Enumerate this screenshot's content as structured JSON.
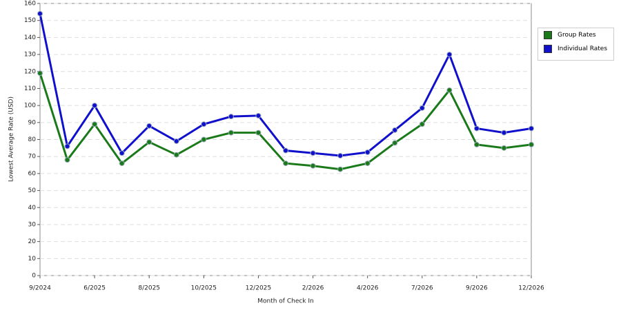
{
  "chart_data": {
    "type": "line",
    "x_label": "Month of Check In",
    "y_label": "Lowest Average Rate (USD)",
    "categories": [
      "9/2024",
      null,
      "6/2025",
      null,
      "8/2025",
      null,
      "10/2025",
      null,
      "12/2025",
      null,
      "2/2026",
      null,
      "4/2026",
      null,
      "7/2026",
      null,
      "9/2026",
      null,
      "12/2026"
    ],
    "series": [
      {
        "name": "Group Rates",
        "color": "#1a7a1a",
        "values": [
          119,
          68,
          89,
          66,
          78.5,
          71,
          80,
          84,
          84,
          66,
          64.5,
          62.5,
          66,
          78,
          89,
          109,
          77,
          75,
          77
        ]
      },
      {
        "name": "Individual Rates",
        "color": "#1010cc",
        "values": [
          154,
          76,
          100,
          72,
          88,
          79,
          89,
          93.5,
          94,
          73.5,
          72,
          70.5,
          72.5,
          85.5,
          98.5,
          130,
          86.5,
          84,
          86.5
        ]
      }
    ],
    "ylim": [
      0,
      160
    ],
    "yticks": [
      0,
      10,
      20,
      30,
      40,
      50,
      60,
      70,
      80,
      90,
      100,
      110,
      120,
      130,
      140,
      150,
      160
    ],
    "grid": true
  }
}
